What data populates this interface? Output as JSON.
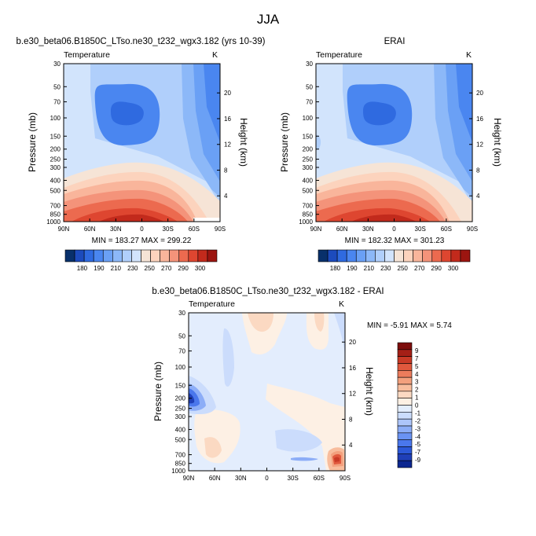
{
  "figure": {
    "title": "JJA"
  },
  "colors": {
    "abs_levels": [
      "#08306b",
      "#1c4bbd",
      "#2f6ae0",
      "#4a86f0",
      "#6aa0f5",
      "#8cb8f8",
      "#b0cffb",
      "#d2e4fc",
      "#f6e4d6",
      "#fcd3bd",
      "#f9b59b",
      "#f4937a",
      "#ec6a4f",
      "#de4630",
      "#c22a1c",
      "#9c1510"
    ],
    "diff_levels": [
      "#0c2790",
      "#1f3fb8",
      "#2c58d8",
      "#4a77ec",
      "#6a93f3",
      "#8cadf7",
      "#adc5fa",
      "#cbdcfc",
      "#e3edfd",
      "#fdf0e4",
      "#fbd9c2",
      "#f8bd9d",
      "#f3a07d",
      "#ec7c5c",
      "#e0583d",
      "#c93a26",
      "#a51f16",
      "#7d0d0c"
    ]
  },
  "chart_data": [
    {
      "type": "heatmap",
      "name": "model",
      "title": "b.e30_beta06.B1850C_LTso.ne30_t232_wgx3.182 (yrs 10-39)",
      "left_label": "Temperature",
      "right_label": "K",
      "xlabel": "",
      "ylabel": "Pressure (mb)",
      "y2label": "Height (km)",
      "xticks": [
        "90N",
        "60N",
        "30N",
        "0",
        "30S",
        "60S",
        "90S"
      ],
      "yticks": [
        "30",
        "50",
        "70",
        "100",
        "150",
        "200",
        "250",
        "300",
        "400",
        "500",
        "700",
        "850",
        "1000"
      ],
      "y2ticks": [
        "20",
        "16",
        "12",
        "8",
        "4"
      ],
      "stats": "MIN = 183.27   MAX = 299.22",
      "min": 183.27,
      "max": 299.22
    },
    {
      "type": "heatmap",
      "name": "erai",
      "title": "ERAI",
      "left_label": "Temperature",
      "right_label": "K",
      "xlabel": "",
      "ylabel": "Pressure (mb)",
      "y2label": "Height (km)",
      "xticks": [
        "90N",
        "60N",
        "30N",
        "0",
        "30S",
        "60S",
        "90S"
      ],
      "yticks": [
        "30",
        "50",
        "70",
        "100",
        "150",
        "200",
        "250",
        "300",
        "400",
        "500",
        "700",
        "850",
        "1000"
      ],
      "y2ticks": [
        "20",
        "16",
        "12",
        "8",
        "4"
      ],
      "stats": "MIN = 182.32   MAX = 301.23",
      "min": 182.32,
      "max": 301.23
    },
    {
      "type": "heatmap",
      "name": "difference",
      "title": "b.e30_beta06.B1850C_LTso.ne30_t232_wgx3.182 - ERAI",
      "left_label": "Temperature",
      "right_label": "K",
      "xlabel": "",
      "ylabel": "Pressure (mb)",
      "y2label": "Height (km)",
      "xticks": [
        "90N",
        "60N",
        "30N",
        "0",
        "30S",
        "60S",
        "90S"
      ],
      "yticks": [
        "30",
        "50",
        "70",
        "100",
        "150",
        "200",
        "250",
        "300",
        "400",
        "500",
        "700",
        "850",
        "1000"
      ],
      "y2ticks": [
        "20",
        "16",
        "12",
        "8",
        "4"
      ],
      "stats": "MIN =  -5.91   MAX =   5.74",
      "min": -5.91,
      "max": 5.74
    }
  ],
  "colorbars": {
    "absolute": {
      "labels": [
        "180",
        "190",
        "210",
        "230",
        "250",
        "270",
        "290",
        "300"
      ]
    },
    "difference": {
      "labels": [
        "9",
        "7",
        "5",
        "4",
        "3",
        "2",
        "1",
        "0",
        "-1",
        "-2",
        "-3",
        "-4",
        "-5",
        "-7",
        "-9"
      ]
    }
  }
}
